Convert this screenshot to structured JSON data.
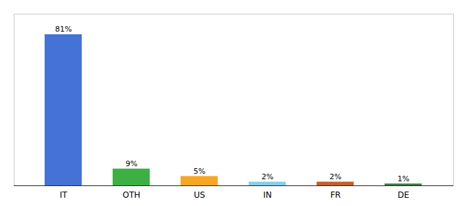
{
  "chart_data": {
    "type": "bar",
    "categories": [
      "IT",
      "OTH",
      "US",
      "IN",
      "FR",
      "DE"
    ],
    "values": [
      81,
      9,
      5,
      2,
      2,
      1
    ],
    "value_labels": [
      "81%",
      "9%",
      "5%",
      "2%",
      "2%",
      "1%"
    ],
    "colors": [
      "#4472d6",
      "#3cb043",
      "#f5a623",
      "#87ceeb",
      "#c0622a",
      "#3a7d44"
    ],
    "ylim": [
      0,
      92
    ],
    "data_labels": true,
    "tick_labels": "x",
    "grid": false
  }
}
